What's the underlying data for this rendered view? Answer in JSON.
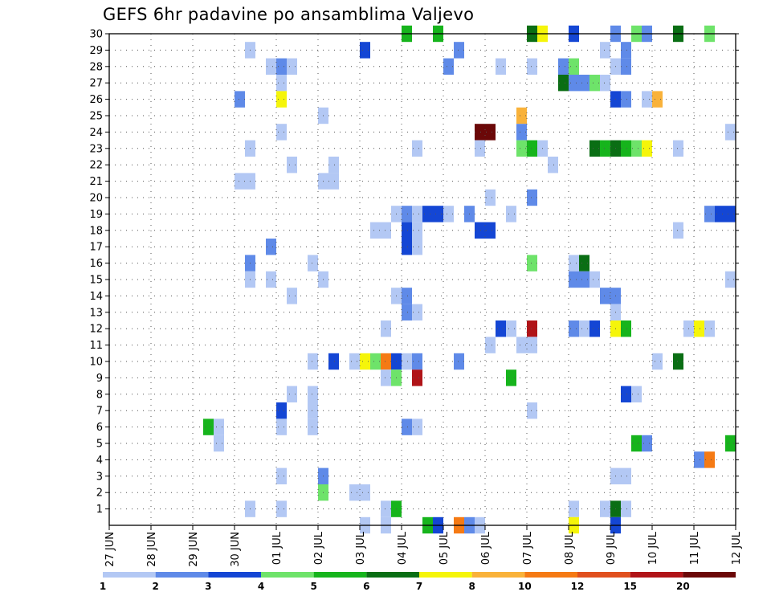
{
  "chart_data": {
    "type": "heatmap",
    "title": "GEFS 6hr padavine po ansamblima Valjevo",
    "x_ticks": [
      "27 JUN",
      "28 JUN",
      "29 JUN",
      "30 JUN",
      "01 JUL",
      "02 JUL",
      "03 JUL",
      "04 JUL",
      "05 JUL",
      "06 JUL",
      "07 JUL",
      "08 JUL",
      "09 JUL",
      "10 JUL",
      "11 JUL",
      "12 JUL"
    ],
    "x_range_hours": [
      0,
      360
    ],
    "x_step_hours": 6,
    "y_ticks": [
      1,
      2,
      3,
      4,
      5,
      6,
      7,
      8,
      9,
      10,
      11,
      12,
      13,
      14,
      15,
      16,
      17,
      18,
      19,
      20,
      21,
      22,
      23,
      24,
      25,
      26,
      27,
      28,
      29,
      30
    ],
    "y_range": [
      0,
      30
    ],
    "grid": true,
    "colorbar": {
      "labels": [
        "1",
        "2",
        "3",
        "4",
        "5",
        "6",
        "7",
        "8",
        "10",
        "12",
        "15",
        "20"
      ],
      "colors": [
        "#b3c8f4",
        "#5f8ae8",
        "#1446d4",
        "#6ee36a",
        "#16b41c",
        "#0a6e14",
        "#f5f50a",
        "#f9b23a",
        "#f57a14",
        "#e0501e",
        "#b01418",
        "#6b0808"
      ]
    },
    "cells_hours_member_classindex": [
      [
        156,
        0,
        0
      ],
      [
        168,
        30,
        4
      ],
      [
        186,
        30,
        4
      ],
      [
        300,
        30,
        3
      ],
      [
        246,
        30,
        6
      ],
      [
        240,
        30,
        5
      ],
      [
        264,
        30,
        2
      ],
      [
        288,
        30,
        1
      ],
      [
        306,
        30,
        1
      ],
      [
        324,
        30,
        5
      ],
      [
        342,
        30,
        3
      ],
      [
        78,
        29,
        0
      ],
      [
        144,
        29,
        2
      ],
      [
        198,
        29,
        1
      ],
      [
        282,
        29,
        0
      ],
      [
        294,
        29,
        1
      ],
      [
        90,
        28,
        0
      ],
      [
        96,
        28,
        1
      ],
      [
        102,
        28,
        0
      ],
      [
        192,
        28,
        1
      ],
      [
        222,
        28,
        0
      ],
      [
        240,
        28,
        0
      ],
      [
        258,
        28,
        1
      ],
      [
        264,
        28,
        3
      ],
      [
        288,
        28,
        0
      ],
      [
        294,
        28,
        1
      ],
      [
        96,
        27,
        0
      ],
      [
        258,
        27,
        5
      ],
      [
        264,
        27,
        1
      ],
      [
        270,
        27,
        1
      ],
      [
        276,
        27,
        3
      ],
      [
        282,
        27,
        0
      ],
      [
        72,
        26,
        1
      ],
      [
        96,
        26,
        6
      ],
      [
        288,
        26,
        2
      ],
      [
        294,
        26,
        1
      ],
      [
        306,
        26,
        0
      ],
      [
        312,
        26,
        7
      ],
      [
        120,
        25,
        0
      ],
      [
        234,
        25,
        7
      ],
      [
        96,
        24,
        0
      ],
      [
        210,
        24,
        11
      ],
      [
        216,
        24,
        11
      ],
      [
        234,
        24,
        1
      ],
      [
        354,
        24,
        0
      ],
      [
        78,
        23,
        0
      ],
      [
        174,
        23,
        0
      ],
      [
        210,
        23,
        0
      ],
      [
        234,
        23,
        3
      ],
      [
        240,
        23,
        4
      ],
      [
        246,
        23,
        0
      ],
      [
        276,
        23,
        5
      ],
      [
        282,
        23,
        4
      ],
      [
        288,
        23,
        5
      ],
      [
        294,
        23,
        4
      ],
      [
        300,
        23,
        3
      ],
      [
        306,
        23,
        6
      ],
      [
        324,
        23,
        0
      ],
      [
        102,
        22,
        0
      ],
      [
        126,
        22,
        0
      ],
      [
        252,
        22,
        0
      ],
      [
        126,
        21,
        0
      ],
      [
        72,
        21,
        0
      ],
      [
        78,
        21,
        0
      ],
      [
        120,
        21,
        0
      ],
      [
        216,
        20,
        0
      ],
      [
        240,
        20,
        1
      ],
      [
        162,
        19,
        0
      ],
      [
        168,
        19,
        1
      ],
      [
        174,
        19,
        0
      ],
      [
        180,
        19,
        2
      ],
      [
        186,
        19,
        2
      ],
      [
        192,
        19,
        0
      ],
      [
        204,
        19,
        1
      ],
      [
        228,
        19,
        0
      ],
      [
        342,
        19,
        1
      ],
      [
        348,
        19,
        2
      ],
      [
        354,
        19,
        2
      ],
      [
        150,
        18,
        0
      ],
      [
        156,
        18,
        0
      ],
      [
        168,
        18,
        2
      ],
      [
        174,
        18,
        0
      ],
      [
        210,
        18,
        2
      ],
      [
        216,
        18,
        2
      ],
      [
        324,
        18,
        0
      ],
      [
        90,
        17,
        1
      ],
      [
        168,
        17,
        2
      ],
      [
        174,
        17,
        0
      ],
      [
        78,
        16,
        1
      ],
      [
        114,
        16,
        0
      ],
      [
        240,
        16,
        3
      ],
      [
        264,
        16,
        0
      ],
      [
        270,
        16,
        5
      ],
      [
        78,
        15,
        0
      ],
      [
        90,
        15,
        0
      ],
      [
        120,
        15,
        0
      ],
      [
        264,
        15,
        1
      ],
      [
        270,
        15,
        1
      ],
      [
        276,
        15,
        0
      ],
      [
        354,
        15,
        0
      ],
      [
        102,
        14,
        0
      ],
      [
        162,
        14,
        0
      ],
      [
        168,
        14,
        1
      ],
      [
        282,
        14,
        1
      ],
      [
        288,
        14,
        1
      ],
      [
        174,
        13,
        0
      ],
      [
        168,
        13,
        1
      ],
      [
        288,
        13,
        0
      ],
      [
        156,
        12,
        0
      ],
      [
        222,
        12,
        2
      ],
      [
        228,
        12,
        0
      ],
      [
        240,
        12,
        10
      ],
      [
        264,
        12,
        1
      ],
      [
        270,
        12,
        0
      ],
      [
        276,
        12,
        2
      ],
      [
        288,
        12,
        6
      ],
      [
        294,
        12,
        4
      ],
      [
        330,
        12,
        0
      ],
      [
        336,
        12,
        6
      ],
      [
        342,
        12,
        0
      ],
      [
        216,
        11,
        0
      ],
      [
        234,
        11,
        0
      ],
      [
        240,
        11,
        0
      ],
      [
        114,
        10,
        0
      ],
      [
        126,
        10,
        2
      ],
      [
        138,
        10,
        0
      ],
      [
        144,
        10,
        6
      ],
      [
        150,
        10,
        3
      ],
      [
        156,
        10,
        8
      ],
      [
        162,
        10,
        2
      ],
      [
        168,
        10,
        0
      ],
      [
        174,
        10,
        1
      ],
      [
        198,
        10,
        1
      ],
      [
        312,
        10,
        0
      ],
      [
        324,
        10,
        5
      ],
      [
        156,
        9,
        0
      ],
      [
        162,
        9,
        3
      ],
      [
        174,
        9,
        10
      ],
      [
        228,
        9,
        4
      ],
      [
        102,
        8,
        0
      ],
      [
        114,
        8,
        0
      ],
      [
        294,
        8,
        2
      ],
      [
        300,
        8,
        0
      ],
      [
        96,
        7,
        2
      ],
      [
        114,
        7,
        0
      ],
      [
        240,
        7,
        0
      ],
      [
        54,
        6,
        4
      ],
      [
        60,
        6,
        0
      ],
      [
        96,
        6,
        0
      ],
      [
        114,
        6,
        0
      ],
      [
        168,
        6,
        1
      ],
      [
        174,
        6,
        0
      ],
      [
        60,
        5,
        0
      ],
      [
        300,
        5,
        4
      ],
      [
        306,
        5,
        1
      ],
      [
        354,
        5,
        4
      ],
      [
        336,
        4,
        1
      ],
      [
        342,
        4,
        8
      ],
      [
        96,
        3,
        0
      ],
      [
        120,
        3,
        1
      ],
      [
        288,
        3,
        0
      ],
      [
        294,
        3,
        0
      ],
      [
        120,
        2,
        3
      ],
      [
        138,
        2,
        0
      ],
      [
        144,
        2,
        0
      ],
      [
        78,
        1,
        0
      ],
      [
        96,
        1,
        0
      ],
      [
        156,
        1,
        0
      ],
      [
        162,
        1,
        4
      ],
      [
        264,
        1,
        0
      ],
      [
        282,
        1,
        0
      ],
      [
        288,
        1,
        5
      ],
      [
        294,
        1,
        0
      ],
      [
        144,
        0,
        0
      ],
      [
        180,
        0,
        4
      ],
      [
        186,
        0,
        2
      ],
      [
        198,
        0,
        8
      ],
      [
        204,
        0,
        1
      ],
      [
        210,
        0,
        0
      ],
      [
        264,
        0,
        6
      ],
      [
        288,
        0,
        2
      ]
    ]
  }
}
